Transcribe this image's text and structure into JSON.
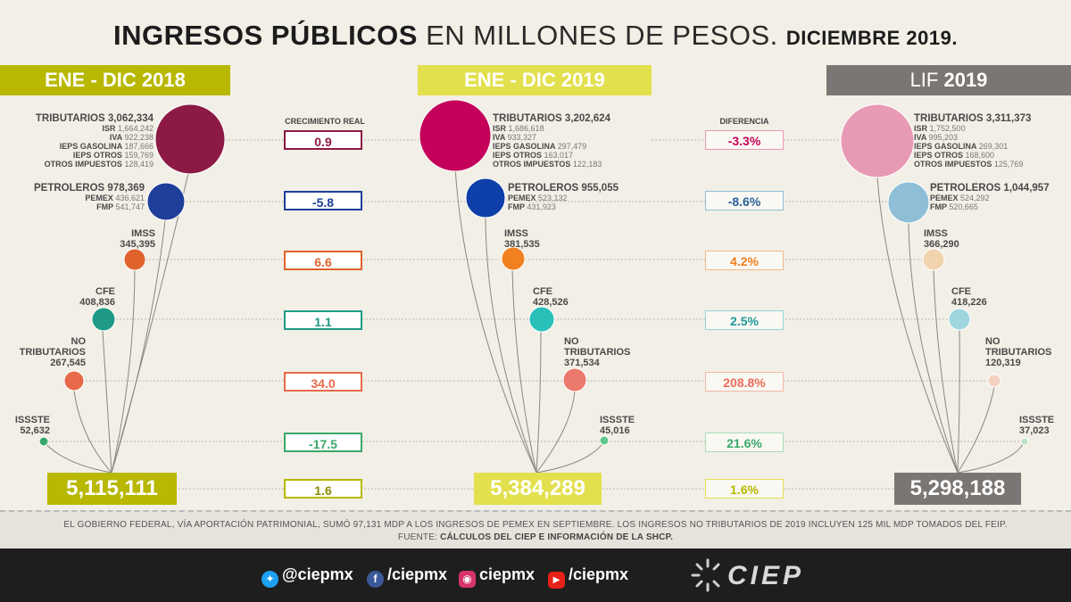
{
  "title": {
    "bold": "INGRESOS PÚBLICOS",
    "normal": "EN MILLONES DE PESOS.",
    "small": "DICIEMBRE 2019."
  },
  "headers": {
    "y2018": "ENE - DIC 2018",
    "y2019": "ENE - DIC 2019",
    "lif_a": "LIF ",
    "lif_b": "2019"
  },
  "colors": {
    "h2018": "#b8b800",
    "h2019": "#e3e04e",
    "lif": "#7a7673",
    "tributarios2018": "#8c1a45",
    "tributarios2019": "#c4005a",
    "tributariosLif": "#e89ab5",
    "petro2018": "#1f3f9a",
    "petro2019": "#0f3fa8",
    "petroLif": "#8fbfd7",
    "imss2018": "#e0622c",
    "imss2019": "#f08020",
    "imssLif": "#f1d3ae",
    "cfe2018": "#1f9a86",
    "cfe2019": "#28c0b8",
    "cfeLif": "#9fd6de",
    "notrib2018": "#e66a4a",
    "notrib2019": "#ec7a6c",
    "notribLif": "#f4d1c0",
    "issste2018": "#3aa86a",
    "issste2019": "#5fc78a",
    "issteLif": "#b9e2c2"
  },
  "col2018": {
    "tributarios": {
      "name": "TRIBUTARIOS 3,062,334",
      "isr_l": "ISR",
      "isr": "1,664,242",
      "iva_l": "IVA",
      "iva": "922,238",
      "ig_l": "IEPS GASOLINA",
      "ig": "187,666",
      "io_l": "IEPS OTROS",
      "io": "159,769",
      "oi_l": "OTROS IMPUESTOS",
      "oi": "128,419"
    },
    "petroleros": {
      "name": "PETROLEROS 978,369",
      "pemex_l": "PEMEX",
      "pemex": "436,621",
      "fmp_l": "FMP",
      "fmp": "541,747"
    },
    "imss": {
      "name": "IMSS",
      "value": "345,395"
    },
    "cfe": {
      "name": "CFE",
      "value": "408,836"
    },
    "notrib": {
      "name1": "NO",
      "name2": "TRIBUTARIOS",
      "value": "267,545"
    },
    "issste": {
      "name": "ISSSTE",
      "value": "52,632"
    },
    "total": "5,115,111"
  },
  "col2019": {
    "tributarios": {
      "name": "TRIBUTARIOS 3,202,624",
      "isr_l": "ISR",
      "isr": "1,686,618",
      "iva_l": "IVA",
      "iva": "933,327",
      "ig_l": "IEPS GASOLINA",
      "ig": "297,479",
      "io_l": "IEPS OTROS",
      "io": "163,017",
      "oi_l": "OTROS IMPUESTOS",
      "oi": "122,183"
    },
    "petroleros": {
      "name": "PETROLEROS 955,055",
      "pemex_l": "PEMEX",
      "pemex": "523,132",
      "fmp_l": "FMP",
      "fmp": "431,923"
    },
    "imss": {
      "name": "IMSS",
      "value": "381,535"
    },
    "cfe": {
      "name": "CFE",
      "value": "428,526"
    },
    "notrib": {
      "name1": "NO",
      "name2": "TRIBUTARIOS",
      "value": "371,534"
    },
    "issste": {
      "name": "ISSSTE",
      "value": "45,016"
    },
    "total": "5,384,289"
  },
  "colLif": {
    "tributarios": {
      "name": "TRIBUTARIOS 3,311,373",
      "isr_l": "ISR",
      "isr": "1,752,500",
      "iva_l": "IVA",
      "iva": "995,203",
      "ig_l": "IEPS GASOLINA",
      "ig": "269,301",
      "io_l": "IEPS OTROS",
      "io": "168,600",
      "oi_l": "OTROS IMPUESTOS",
      "oi": "125,769"
    },
    "petroleros": {
      "name": "PETROLEROS 1,044,957",
      "pemex_l": "PEMEX",
      "pemex": "524,292",
      "fmp_l": "FMP",
      "fmp": "520,665"
    },
    "imss": {
      "name": "IMSS",
      "value": "366,290"
    },
    "cfe": {
      "name": "CFE",
      "value": "418,226"
    },
    "notrib": {
      "name1": "NO",
      "name2": "TRIBUTARIOS",
      "value": "120,319"
    },
    "issste": {
      "name": "ISSSTE",
      "value": "37,023"
    },
    "total": "5,298,188"
  },
  "crecimiento": {
    "header": "CRECIMIENTO REAL",
    "values": [
      "0.9",
      "-5.8",
      "6.6",
      "1.1",
      "34.0",
      "-17.5",
      "1.6"
    ]
  },
  "diferencia": {
    "header": "DIFERENCIA",
    "values": [
      "-3.3%",
      "-8.6%",
      "4.2%",
      "2.5%",
      "208.8%",
      "21.6%",
      "1.6%"
    ]
  },
  "footer": {
    "line1": "EL GOBIERNO FEDERAL, VÍA APORTACIÓN PATRIMONIAL, SUMÓ 97,131 MDP A LOS INGRESOS DE PEMEX EN SEPTIEMBRE. LOS INGRESOS NO TRIBUTARIOS DE 2019 INCLUYEN 125 MIL MDP TOMADOS DEL FEIP.",
    "fuente_l": "FUENTE:",
    "fuente": "CÁLCULOS DEL CIEP E INFORMACIÓN DE LA SHCP."
  },
  "social": {
    "twitter": "@ciepmx",
    "facebook": "/ciepmx",
    "instagram": "ciepmx",
    "youtube": "/ciepmx",
    "logo": "CIEP"
  }
}
